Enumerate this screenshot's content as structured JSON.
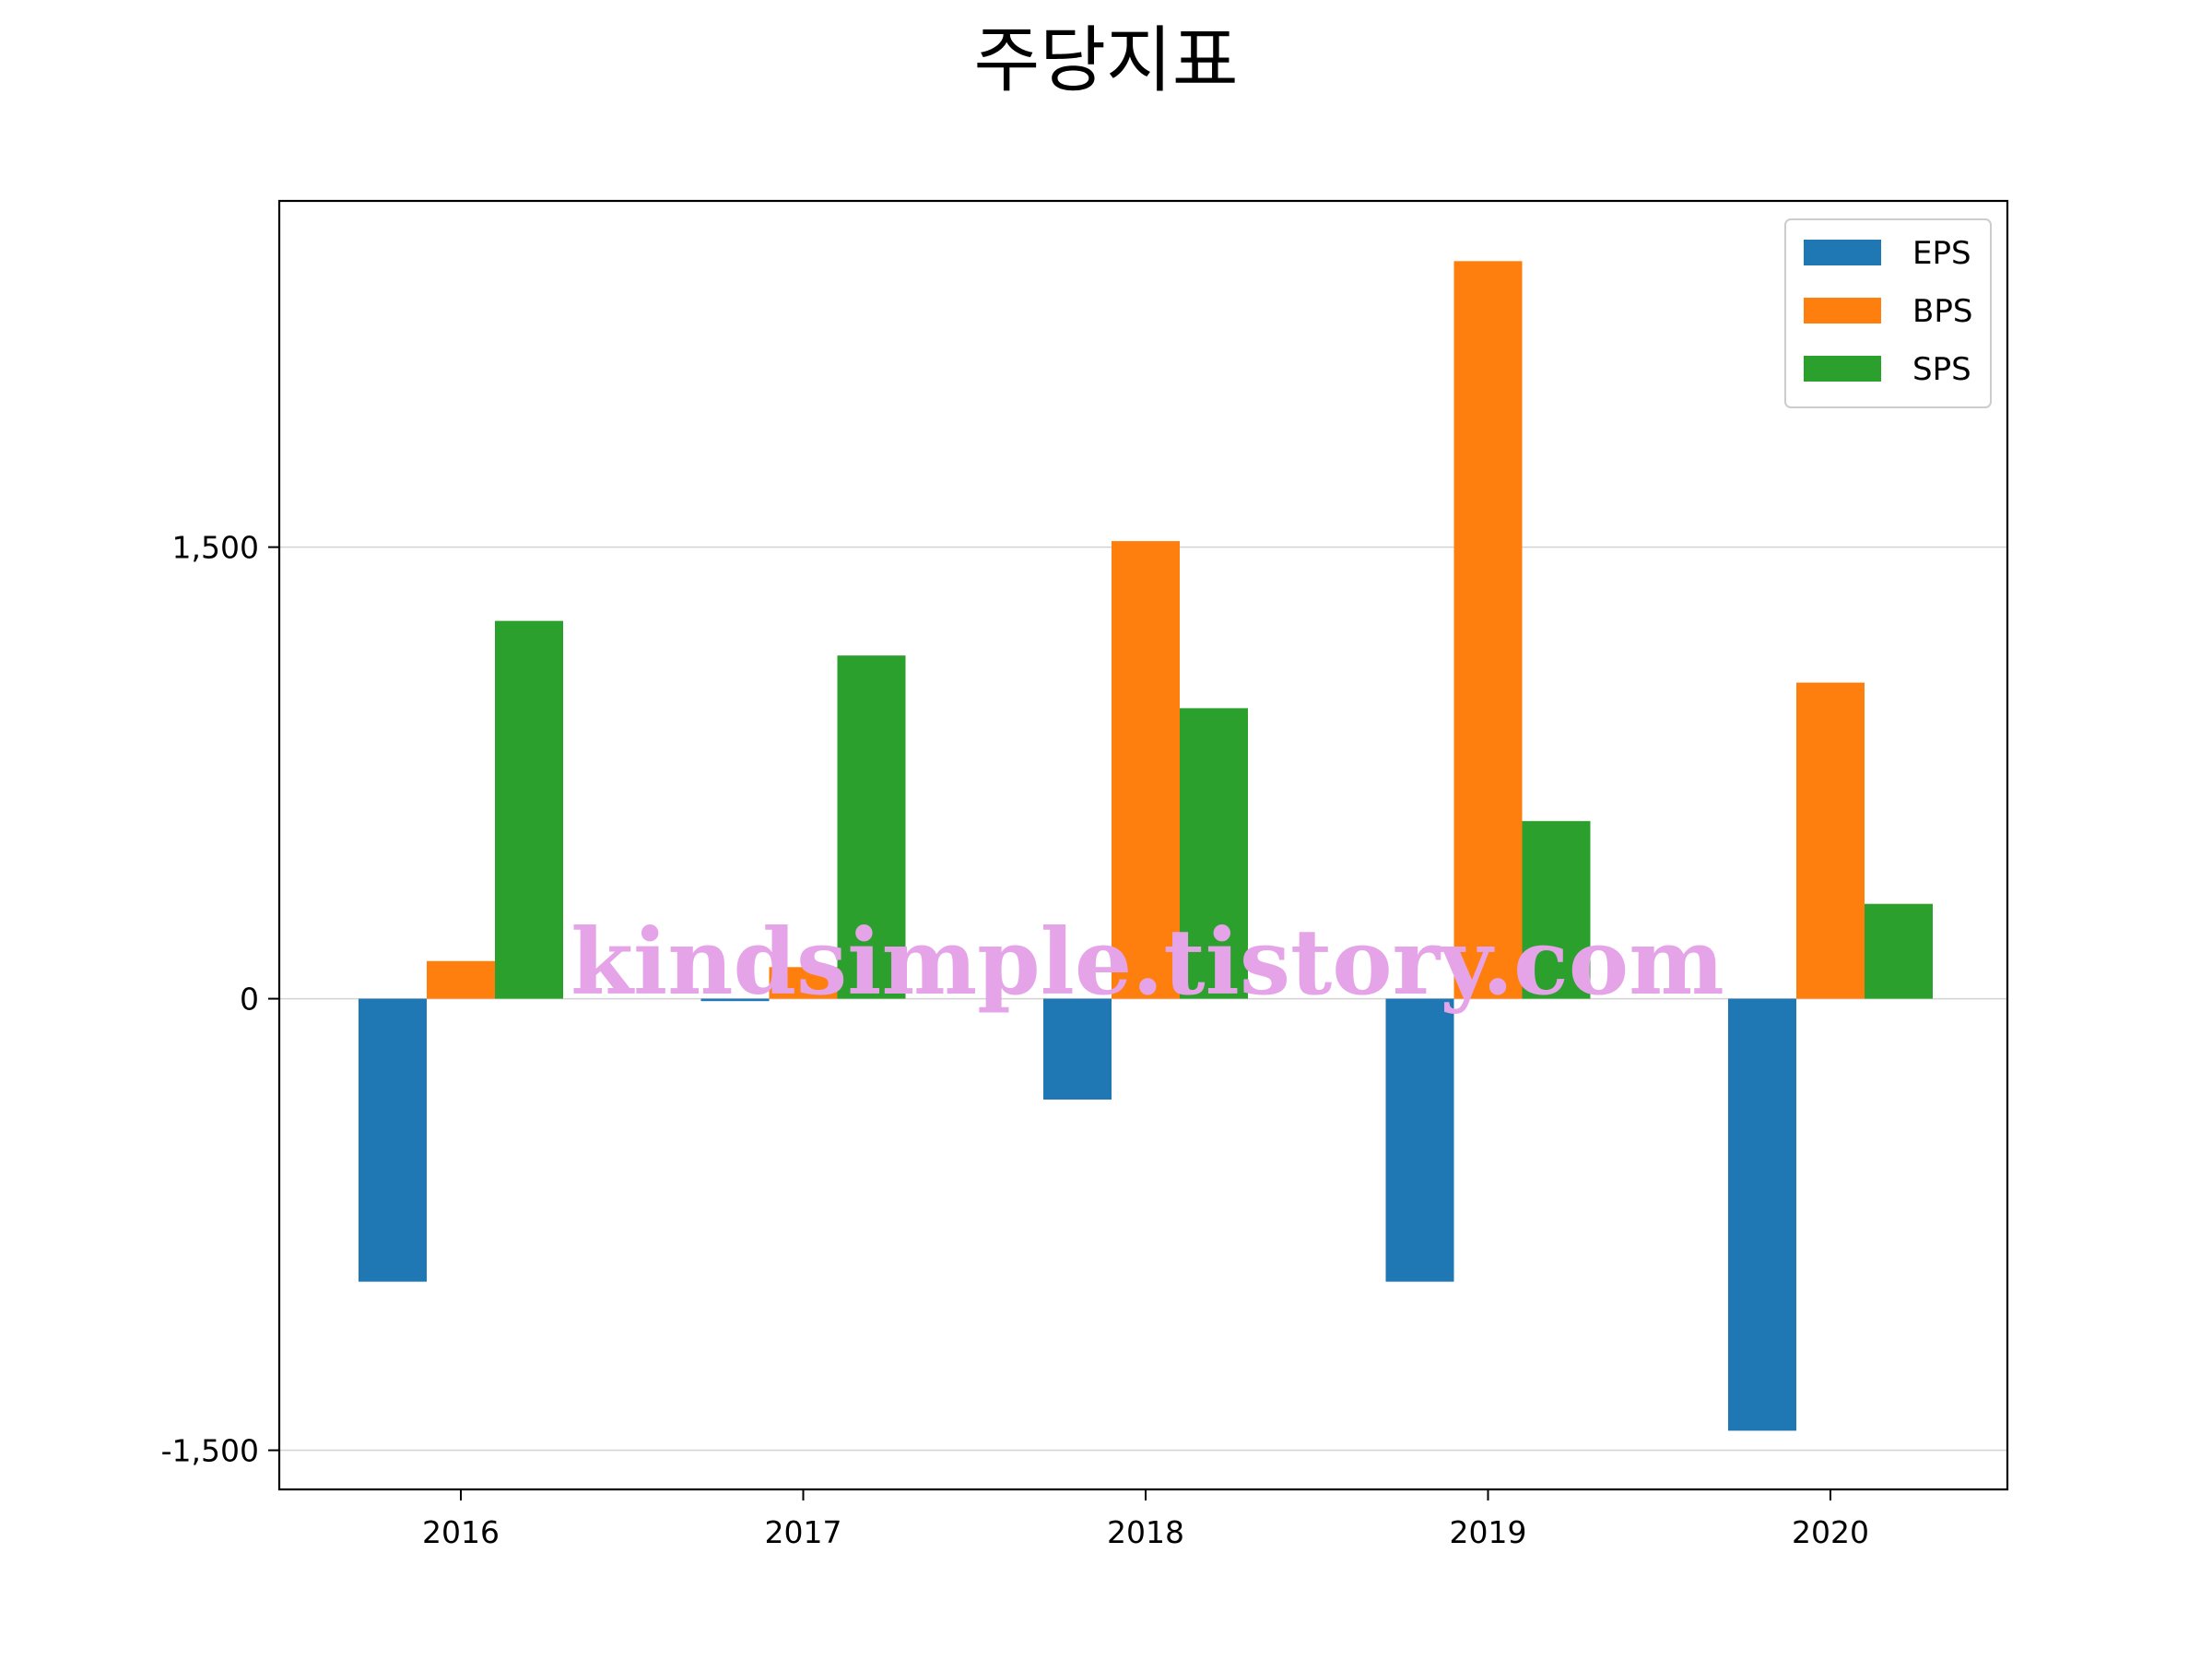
{
  "chart_data": {
    "type": "bar",
    "title": "주당지표",
    "xlabel": "",
    "ylabel": "",
    "categories": [
      "2016",
      "2017",
      "2018",
      "2019",
      "2020"
    ],
    "series": [
      {
        "name": "EPS",
        "color": "#1f77b4",
        "values": [
          -940,
          -8,
          -335,
          -940,
          -1435
        ]
      },
      {
        "name": "BPS",
        "color": "#ff7f0e",
        "values": [
          125,
          105,
          1520,
          2450,
          1050
        ]
      },
      {
        "name": "SPS",
        "color": "#2ca02c",
        "values": [
          1255,
          1140,
          965,
          590,
          315
        ]
      }
    ],
    "ylim": [
      -1630,
      2650
    ],
    "yticks": [
      -1500,
      0,
      1500
    ],
    "ytick_labels": [
      "-1,500",
      "0",
      "1,500"
    ],
    "grid": {
      "y": true,
      "x": false
    },
    "legend_position": "top-right"
  },
  "watermark": "kindsimple.tistory.com"
}
